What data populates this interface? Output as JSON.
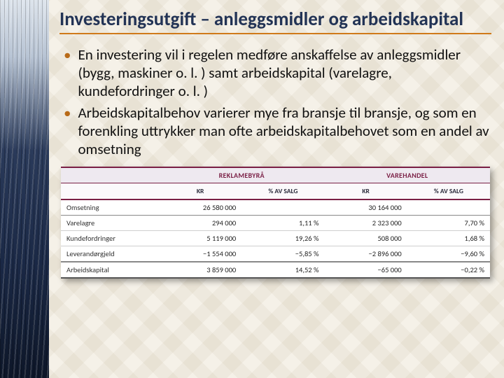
{
  "title": "Investeringsutgift – anleggsmidler og arbeidskapital",
  "title_color": "#223355",
  "title_underline_color": "#d07a1a",
  "title_fontsize": 27,
  "bullets": [
    "En investering vil i regelen medføre anskaffelse av anleggsmidler (bygg, maskiner o. l. ) samt arbeidskapital (varelagre, kundefordringer o. l. )",
    "Arbeidskapitalbehov varierer mye fra bransje til bransje, og som en forenkling uttrykker man ofte arbeidskapitalbehovet som en andel av omsetning"
  ],
  "bullet_marker_color": "#b86a18",
  "bullet_fontsize": 21,
  "table": {
    "header_color": "#7a1f45",
    "group_headers": [
      "",
      "REKLAMEBYRÅ",
      "VAREHANDEL"
    ],
    "sub_headers": [
      "",
      "KR",
      "% AV SALG",
      "KR",
      "% AV SALG"
    ],
    "rows": [
      {
        "label": "Omsetning",
        "c1": "26 580 000",
        "c2": "",
        "c3": "30 164 000",
        "c4": "",
        "section_end": true
      },
      {
        "label": "Varelagre",
        "c1": "294 000",
        "c2": "1,11 %",
        "c3": "2 323 000",
        "c4": "7,70 %"
      },
      {
        "label": "Kundefordringer",
        "c1": "5 119 000",
        "c2": "19,26 %",
        "c3": "508 000",
        "c4": "1,68 %"
      },
      {
        "label": "Leverandørgjeld",
        "c1": "−1 554 000",
        "c2": "−5,85 %",
        "c3": "−2 896 000",
        "c4": "−9,60 %",
        "section_end": true
      },
      {
        "label": "Arbeidskapital",
        "c1": "3 859 000",
        "c2": "14,52 %",
        "c3": "−65 000",
        "c4": "−0,22 %",
        "total": true
      }
    ]
  },
  "background_color": "#f5f1e8"
}
